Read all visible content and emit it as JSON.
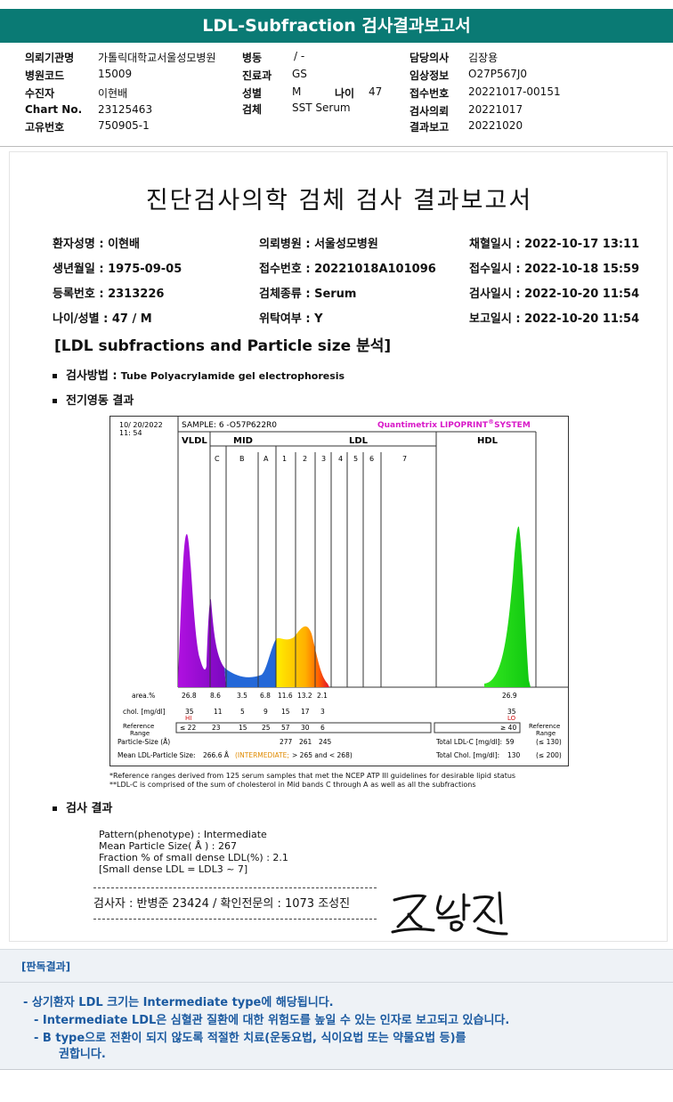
{
  "title": "LDL-Subfraction 검사결과보고서",
  "header": {
    "col1": [
      {
        "label": "의뢰기관명",
        "value": "가톨릭대학교서울성모병원"
      },
      {
        "label": "병원코드",
        "value": "15009"
      },
      {
        "label": "수진자",
        "value": "이현배"
      },
      {
        "label": "Chart No.",
        "value": "23125463"
      },
      {
        "label": "고유번호",
        "value": "750905-1"
      }
    ],
    "col2": [
      {
        "label": "병동",
        "value": "/ -"
      },
      {
        "label": "진료과",
        "value": "GS"
      },
      {
        "label": "성별",
        "value": "M"
      },
      {
        "label": "검체",
        "value": "SST Serum"
      }
    ],
    "age_label": "나이",
    "age_value": "47",
    "col3": [
      {
        "label": "담당의사",
        "value": "김장용"
      },
      {
        "label": "임상정보",
        "value": "O27P567J0"
      },
      {
        "label": "접수번호",
        "value": "20221017-00151"
      },
      {
        "label": "검사의뢰",
        "value": "20221017"
      },
      {
        "label": "결과보고",
        "value": "20221020"
      }
    ]
  },
  "report": {
    "title": "진단검사의학 검체 검사 결과보고서",
    "info": [
      [
        "환자성명 : 이현배",
        "의뢰병원 : 서울성모병원",
        "채혈일시 : 2022-10-17 13:11"
      ],
      [
        "생년월일 : 1975-09-05",
        "접수번호 : 20221018A101096",
        "접수일시 : 2022-10-18 15:59"
      ],
      [
        "등록번호 : 2313226",
        "검체종류 : Serum",
        "검사일시 : 2022-10-20 11:54"
      ],
      [
        "나이/성별 : 47 / M",
        "위탁여부 : Y",
        "보고일시 : 2022-10-20 11:54"
      ]
    ],
    "section_title": "[LDL subfractions and Particle size 분석]",
    "method_label": "검사방법 :",
    "method_value": "Tube Polyacrylamide gel electrophoresis",
    "electro_label": "전기영동 결과",
    "result_label": "검사 결과",
    "results": [
      "Pattern(phenotype) : Intermediate",
      "Mean Particle Size( Å ) : 267",
      "Fraction % of small dense LDL(%) : 2.1",
      "[Small dense LDL = LDL3 ~ 7]"
    ],
    "signature_text": "검사자 : 반병준  23424  /  확인전문의 : 1073  조성진",
    "notes": [
      "*Reference ranges derived from 125 serum samples that met the NCEP ATP III guidelines for desirable lipid status",
      "**LDL-C is comprised of the sum of cholesterol in Mid bands C through A as well as all the subfractions"
    ]
  },
  "chart_data": {
    "type": "area",
    "date": "10/ 20/2022",
    "time": "11: 54",
    "sample": "SAMPLE:  6 -O57P622R0",
    "system_prefix": "Quantimetrix LIPOPRINT",
    "system_reg": "®",
    "system_suffix": "SYSTEM",
    "groups": [
      "VLDL",
      "MID",
      "LDL",
      "HDL"
    ],
    "bands": [
      "C",
      "B",
      "A",
      "1",
      "2",
      "3",
      "4",
      "5",
      "6",
      "7"
    ],
    "rows": {
      "area_label": "area.%",
      "area": [
        "26.8",
        "8.6",
        "3.5",
        "6.8",
        "11.6",
        "13.2",
        "2.1",
        "26.9"
      ],
      "chol_label": "chol. [mg/dl]",
      "chol": [
        "35",
        "11",
        "5",
        "9",
        "15",
        "17",
        "3",
        "35"
      ],
      "chol_flag_vldl": "HI",
      "chol_flag_hdl": "LO",
      "ref_label": "Reference Range",
      "ref": [
        "≤ 22",
        "23",
        "15",
        "25",
        "57",
        "30",
        "6"
      ],
      "ref_hdl": "≥ 40",
      "ref_right_label": "Reference Range",
      "particle_label": "Particle-Size (Å)",
      "particle": [
        "277",
        "261",
        "245"
      ],
      "total_ldl_label": "Total LDL-C [mg/dl]:",
      "total_ldl": "59",
      "total_ldl_ref": "(≤ 130)",
      "mean_label": "Mean LDL-Particle Size:",
      "mean_value": "266.6 Å",
      "mean_class": "(INTERMEDIATE;",
      "mean_ref": "> 265 and < 268)",
      "total_chol_label": "Total Chol. [mg/dl]:",
      "total_chol": "130",
      "total_chol_ref": "(≤ 200)"
    }
  },
  "verdict": {
    "heading": "[판독결과]",
    "lines": [
      "- 상기환자 LDL 크기는 Intermediate type에 해당됩니다.",
      "- Intermediate LDL은 심혈관 질환에 대한 위험도를 높일 수 있는 인자로 보고되고 있습니다.",
      "- B type으로 전환이 되지 않도록 적절한 치료(운동요법, 식이요법 또는 약물요법 등)를",
      "권합니다."
    ]
  },
  "colors": {
    "title_bg": "#0a7a74",
    "verdict_text": "#1b5aa0",
    "vldl": "#9c0dd8",
    "hdl": "#22dd10",
    "system_text": "#d818c8"
  }
}
